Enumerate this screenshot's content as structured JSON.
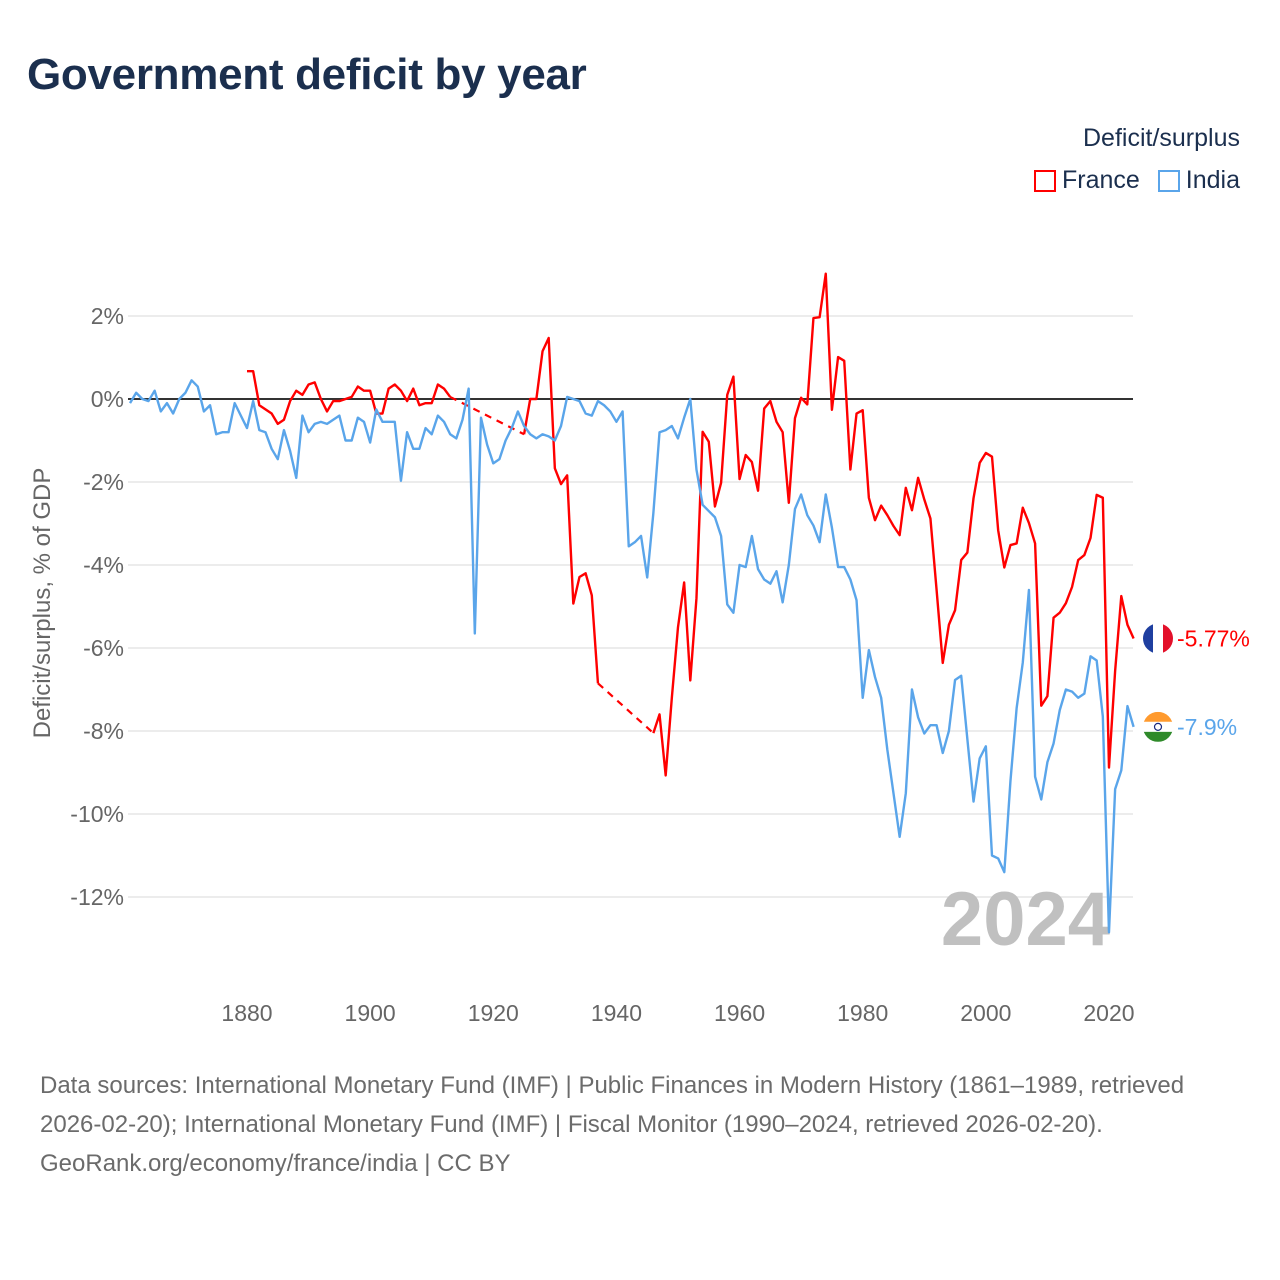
{
  "title": "Government deficit by year",
  "legend": {
    "title": "Deficit/surplus",
    "items": [
      {
        "name": "France",
        "color": "#ff0000"
      },
      {
        "name": "India",
        "color": "#5aa5ea"
      }
    ]
  },
  "watermark_year": "2024",
  "end_labels": {
    "France": "-5.77%",
    "India": "-7.9%"
  },
  "footer": {
    "sources": "Data sources: International Monetary Fund (IMF) | Public Finances in Modern History (1861–1989, retrieved 2026-02-20); International Monetary Fund (IMF) | Fiscal Monitor (1990–2024, retrieved 2026-02-20).",
    "credit": "GeoRank.org/economy/france/india | CC BY"
  },
  "chart_data": {
    "type": "line",
    "title": "Government deficit by year",
    "xlabel": "",
    "ylabel": "Deficit/surplus, % of GDP",
    "xlim": [
      1861,
      2024
    ],
    "ylim": [
      -13.5,
      3.5
    ],
    "x_ticks": [
      1880,
      1900,
      1920,
      1940,
      1960,
      1980,
      2000,
      2020
    ],
    "y_ticks": [
      2,
      0,
      -2,
      -4,
      -6,
      -8,
      -10,
      -12
    ],
    "y_tick_labels": [
      "2%",
      "0%",
      "-2%",
      "-4%",
      "-6%",
      "-8%",
      "-10%",
      "-12%"
    ],
    "x_tick_labels": [
      "1880",
      "1900",
      "1920",
      "1940",
      "1960",
      "1980",
      "2000",
      "2020"
    ],
    "grid": true,
    "legend_position": "top-right",
    "series": [
      {
        "name": "France",
        "color": "#ff0000",
        "start_year": 1880,
        "values": [
          0.67,
          0.67,
          -0.15,
          -0.25,
          -0.35,
          -0.6,
          -0.5,
          -0.05,
          0.2,
          0.1,
          0.35,
          0.4,
          0,
          -0.3,
          -0.05,
          -0.05,
          0,
          0.05,
          0.3,
          0.2,
          0.2,
          -0.35,
          -0.35,
          0.25,
          0.35,
          0.2,
          -0.05,
          0.25,
          -0.15,
          -0.1,
          -0.1,
          0.35,
          0.25,
          0.05,
          null,
          null,
          null,
          null,
          null,
          null,
          null,
          null,
          null,
          null,
          null,
          -0.85,
          0,
          0,
          1.15,
          1.47,
          -1.67,
          -2.05,
          -1.84,
          -4.93,
          -4.29,
          -4.2,
          -4.73,
          -6.85,
          null,
          null,
          null,
          null,
          null,
          null,
          null,
          null,
          -8.05,
          -7.6,
          -9.07,
          -7.2,
          -5.5,
          -4.42,
          -6.78,
          -4.8,
          -0.79,
          -1.03,
          -2.59,
          -2.02,
          0.1,
          0.54,
          -1.93,
          -1.35,
          -1.52,
          -2.21,
          -0.23,
          -0.05,
          -0.55,
          -0.8,
          -2.5,
          -0.46,
          0.03,
          -0.13,
          1.95,
          1.97,
          3.02,
          -0.26,
          1.01,
          0.92,
          -1.7,
          -0.35,
          -0.27,
          -2.38,
          -2.92,
          -2.57,
          -2.8,
          -3.06,
          -3.28,
          -2.14,
          -2.68,
          -1.9,
          -2.42,
          -2.88,
          -4.6,
          -6.36,
          -5.44,
          -5.09,
          -3.88,
          -3.7,
          -2.39,
          -1.54,
          -1.3,
          -1.39,
          -3.16,
          -4.06,
          -3.52,
          -3.48,
          -2.62,
          -2.99,
          -3.48,
          -7.39,
          -7.16,
          -5.27,
          -5.15,
          -4.92,
          -4.53,
          -3.88,
          -3.76,
          -3.35,
          -2.31,
          -2.38,
          -8.88,
          -6.55,
          -4.75,
          -5.44,
          -5.77
        ]
      },
      {
        "name": "India",
        "color": "#5aa5ea",
        "start_year": 1861,
        "values": [
          -0.1,
          0.15,
          0,
          -0.05,
          0.2,
          -0.3,
          -0.1,
          -0.35,
          0,
          0.15,
          0.45,
          0.3,
          -0.3,
          -0.15,
          -0.85,
          -0.8,
          -0.8,
          -0.1,
          -0.4,
          -0.7,
          -0.05,
          -0.75,
          -0.8,
          -1.2,
          -1.45,
          -0.75,
          -1.25,
          -1.9,
          -0.4,
          -0.8,
          -0.6,
          -0.55,
          -0.6,
          -0.5,
          -0.4,
          -1.0,
          -1.0,
          -0.45,
          -0.55,
          -1.05,
          -0.25,
          -0.55,
          -0.55,
          -0.55,
          -1.97,
          -0.8,
          -1.2,
          -1.2,
          -0.7,
          -0.85,
          -0.4,
          -0.55,
          -0.85,
          -0.95,
          -0.5,
          0.25,
          -5.65,
          -0.45,
          -1.1,
          -1.55,
          -1.45,
          -1.0,
          -0.7,
          -0.3,
          -0.65,
          -0.85,
          -0.95,
          -0.85,
          -0.9,
          -1.0,
          -0.65,
          0.05,
          0,
          -0.05,
          -0.35,
          -0.4,
          -0.05,
          -0.15,
          -0.3,
          -0.55,
          -0.3,
          -3.55,
          -3.45,
          -3.3,
          -4.3,
          -2.75,
          -0.8,
          -0.75,
          -0.65,
          -0.95,
          -0.45,
          0,
          -1.7,
          -2.55,
          -2.7,
          -2.85,
          -3.3,
          -4.95,
          -5.15,
          -4.0,
          -4.05,
          -3.3,
          -4.1,
          -4.35,
          -4.45,
          -4.15,
          -4.9,
          -4.0,
          -2.65,
          -2.3,
          -2.8,
          -3.05,
          -3.45,
          -2.3,
          -3.1,
          -4.05,
          -4.05,
          -4.35,
          -4.85,
          -7.2,
          -6.05,
          -6.7,
          -7.2,
          -8.45,
          -9.5,
          -10.55,
          -9.5,
          -7.0,
          -7.67,
          -8.06,
          -7.86,
          -7.86,
          -8.53,
          -8.0,
          -6.77,
          -6.67,
          -8.2,
          -9.7,
          -8.66,
          -8.37,
          -11.0,
          -11.07,
          -11.4,
          -9.2,
          -7.45,
          -6.35,
          -4.6,
          -9.1,
          -9.65,
          -8.75,
          -8.3,
          -7.5,
          -7.0,
          -7.05,
          -7.2,
          -7.1,
          -6.2,
          -6.3,
          -7.65,
          -12.85,
          -9.4,
          -8.95,
          -7.4,
          -7.9
        ]
      }
    ]
  }
}
